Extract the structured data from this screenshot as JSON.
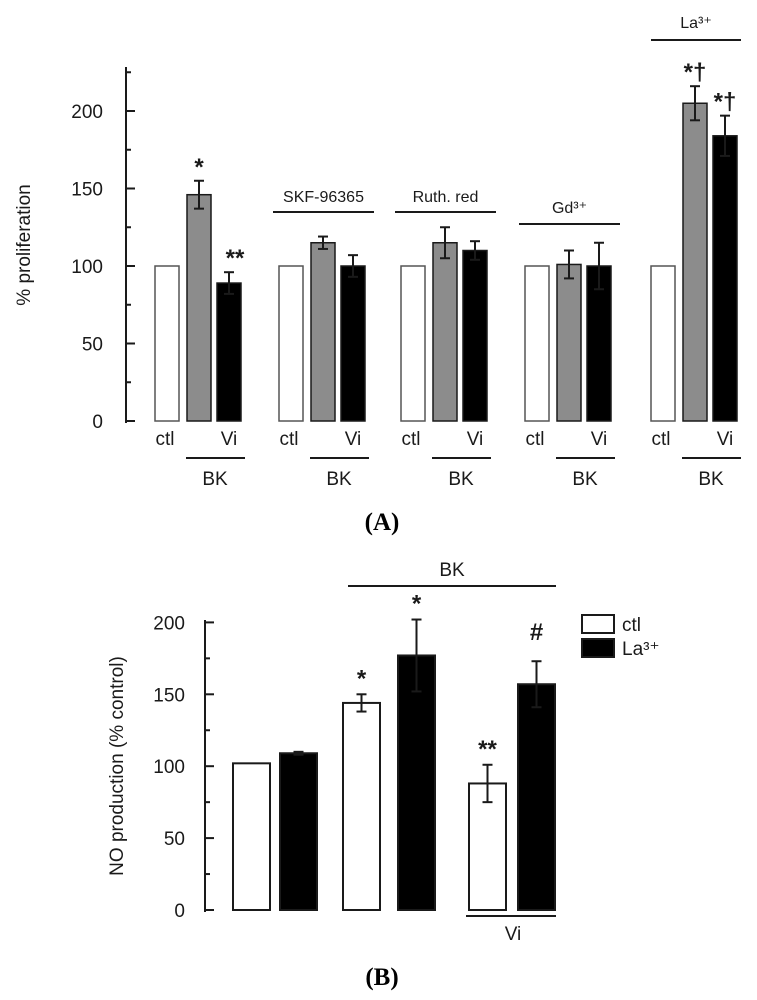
{
  "chart_data": [
    {
      "type": "bar",
      "panel": "A",
      "caption": "(A)",
      "ylabel": "% proliferation",
      "ylim": [
        0,
        225
      ],
      "yticks": [
        0,
        50,
        100,
        150,
        200
      ],
      "colors": {
        "ctl": "#ffffff",
        "BK": "#8c8c8c",
        "Vi": "#000000"
      },
      "groups": [
        {
          "treatment": "",
          "labels": [
            "ctl",
            "",
            "Vi"
          ],
          "bk": "BK",
          "values": [
            100,
            146,
            89
          ],
          "errors": [
            0,
            9,
            7
          ],
          "sig": [
            "",
            "*",
            "**"
          ]
        },
        {
          "treatment": "SKF-96365",
          "labels": [
            "ctl",
            "",
            "Vi"
          ],
          "bk": "BK",
          "values": [
            100,
            115,
            100
          ],
          "errors": [
            0,
            4,
            7
          ],
          "sig": [
            "",
            "",
            ""
          ]
        },
        {
          "treatment": "Ruth. red",
          "labels": [
            "ctl",
            "",
            "Vi"
          ],
          "bk": "BK",
          "values": [
            100,
            115,
            110
          ],
          "errors": [
            0,
            10,
            6
          ],
          "sig": [
            "",
            "",
            ""
          ]
        },
        {
          "treatment": "Gd³⁺",
          "labels": [
            "ctl",
            "",
            "Vi"
          ],
          "bk": "BK",
          "values": [
            100,
            101,
            100
          ],
          "errors": [
            0,
            9,
            15
          ],
          "sig": [
            "",
            "",
            ""
          ]
        },
        {
          "treatment": "La³⁺",
          "labels": [
            "ctl",
            "",
            "Vi"
          ],
          "bk": "BK",
          "values": [
            100,
            205,
            184
          ],
          "errors": [
            0,
            11,
            13
          ],
          "sig": [
            "",
            "*†",
            "*†"
          ]
        }
      ]
    },
    {
      "type": "bar",
      "panel": "B",
      "caption": "(B)",
      "ylabel": "NO production (% control)",
      "ylim": [
        0,
        200
      ],
      "yticks": [
        0,
        50,
        100,
        150,
        200
      ],
      "legend": [
        {
          "name": "ctl",
          "color": "#ffffff"
        },
        {
          "name": "La³⁺",
          "color": "#000000"
        }
      ],
      "bk_label": "BK",
      "vi_label": "Vi",
      "bars": [
        {
          "series": "ctl",
          "value": 102,
          "error": 0,
          "sig": ""
        },
        {
          "series": "La³⁺",
          "value": 109,
          "error": 1,
          "sig": ""
        },
        {
          "series": "ctl",
          "value": 144,
          "error": 6,
          "sig": "*"
        },
        {
          "series": "La³⁺",
          "value": 177,
          "error": 25,
          "sig": "*"
        },
        {
          "series": "ctl",
          "value": 88,
          "error": 13,
          "sig": "**"
        },
        {
          "series": "La³⁺",
          "value": 157,
          "error": 16,
          "sig": "#"
        }
      ]
    }
  ]
}
